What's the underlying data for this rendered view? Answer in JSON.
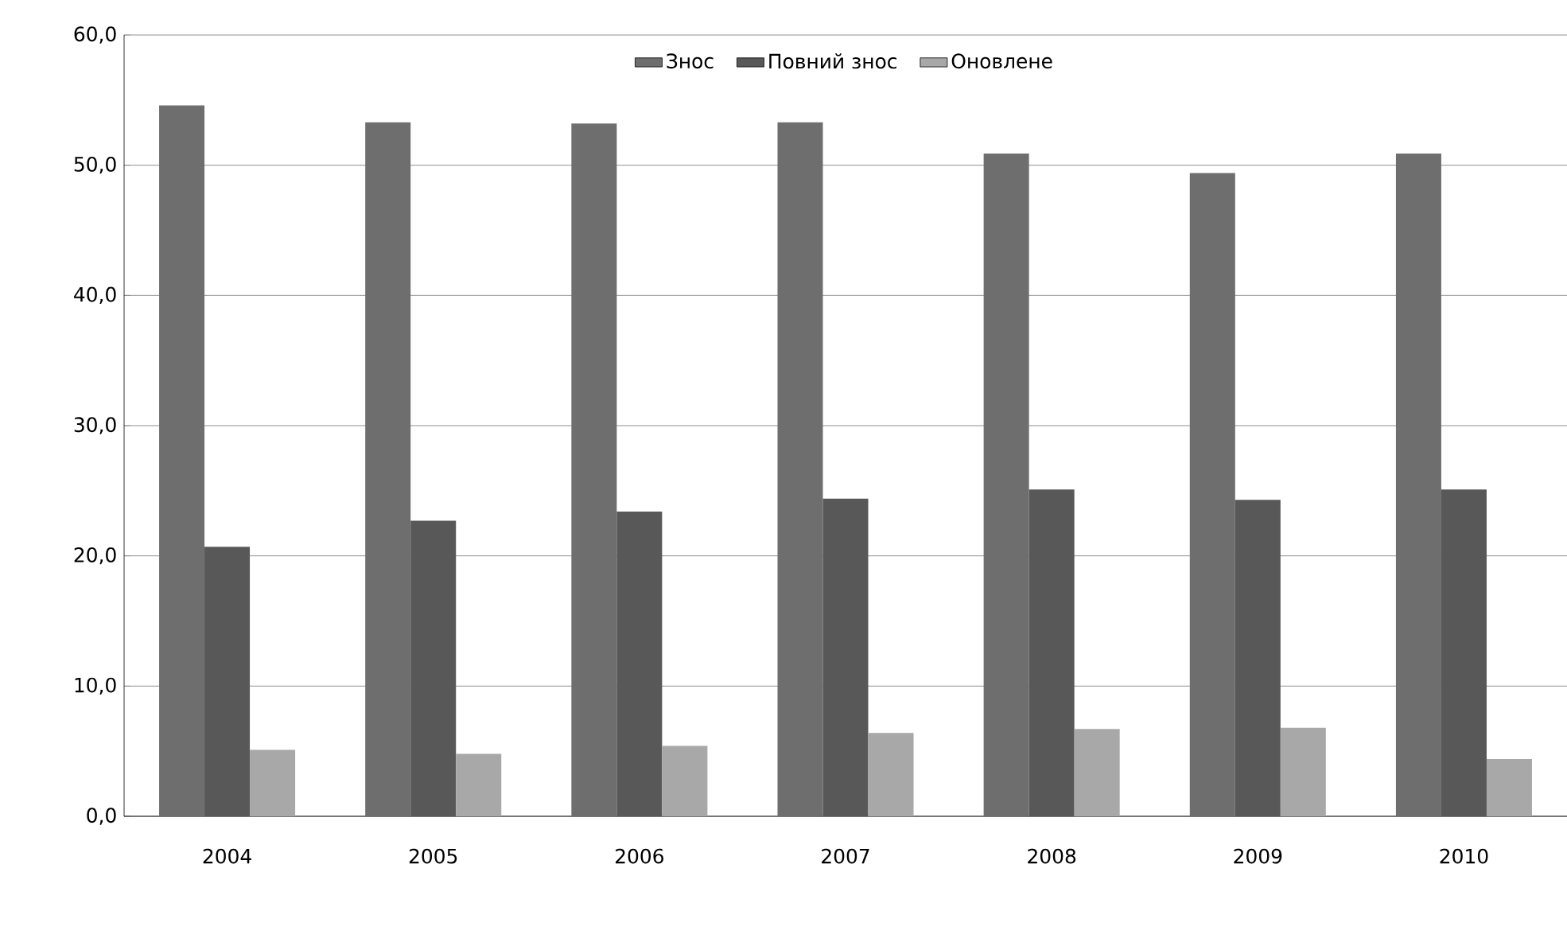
{
  "chart_data": {
    "type": "bar",
    "categories": [
      "2004",
      "2005",
      "2006",
      "2007",
      "2008",
      "2009",
      "2010"
    ],
    "series": [
      {
        "name": "Знос",
        "color": "#6e6e6e",
        "values": [
          54.6,
          53.3,
          53.2,
          53.3,
          50.9,
          49.4,
          50.9
        ]
      },
      {
        "name": "Повний знос",
        "color": "#585858",
        "values": [
          20.7,
          22.7,
          23.4,
          24.4,
          25.1,
          24.3,
          25.1
        ]
      },
      {
        "name": "Оновлене",
        "color": "#a8a8a8",
        "values": [
          5.1,
          4.8,
          5.4,
          6.4,
          6.7,
          6.8,
          4.4
        ]
      }
    ],
    "ylim": [
      0,
      60
    ],
    "yticks": [
      {
        "value": 0,
        "label": "0,0"
      },
      {
        "value": 10,
        "label": "10,0"
      },
      {
        "value": 20,
        "label": "20,0"
      },
      {
        "value": 30,
        "label": "30,0"
      },
      {
        "value": 40,
        "label": "40,0"
      },
      {
        "value": 50,
        "label": "50,0"
      },
      {
        "value": 60,
        "label": "60,0"
      }
    ],
    "grid": "y",
    "legend": "top"
  }
}
